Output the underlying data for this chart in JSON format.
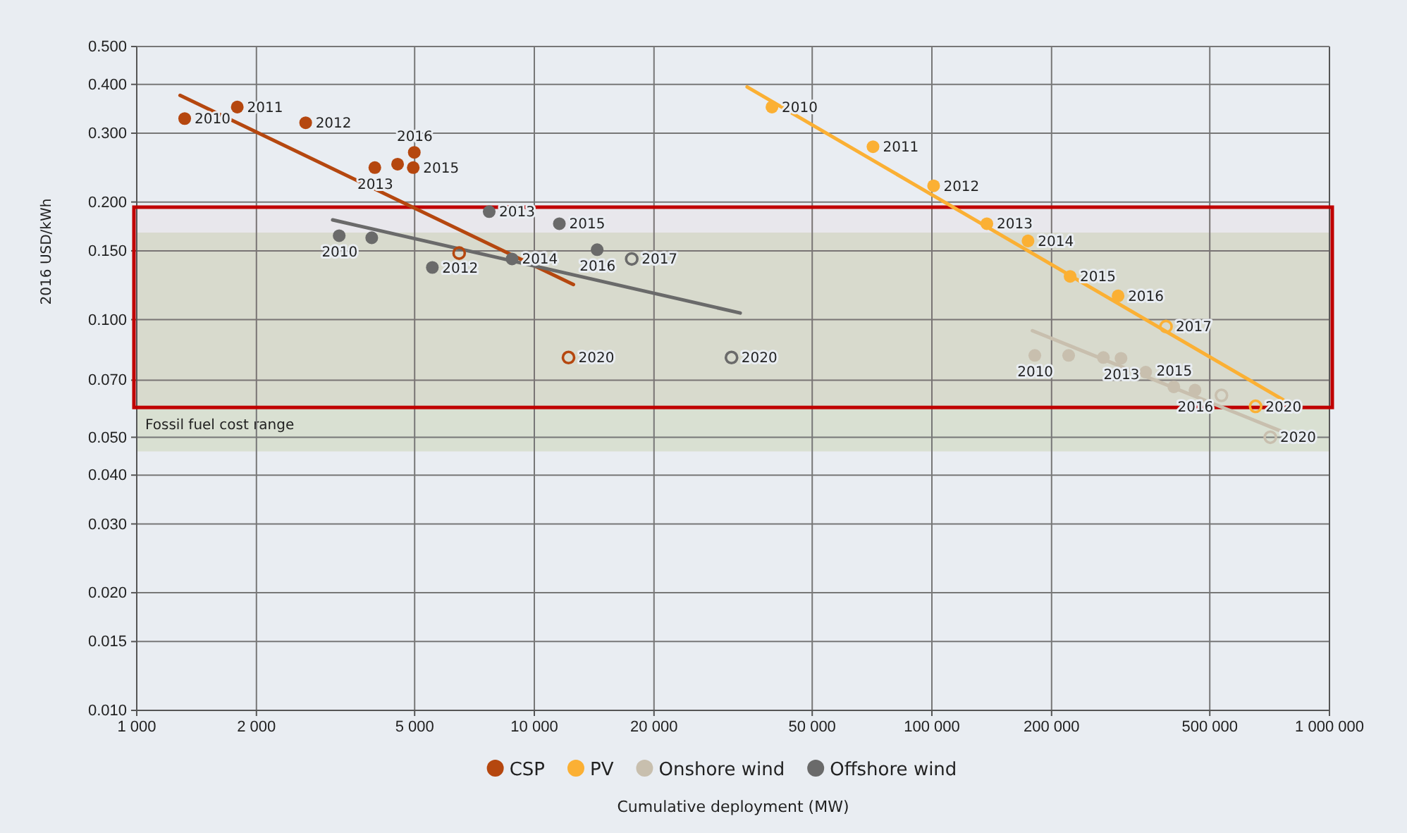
{
  "chart_data": {
    "type": "scatter",
    "xlabel": "Cumulative deployment (MW)",
    "ylabel": "2016 USD/kWh",
    "log": "xy",
    "grid": true,
    "legend": "bottom",
    "marker": "circle",
    "xlim": [
      1000,
      1000000
    ],
    "ylim": [
      0.01,
      0.5
    ],
    "xticks": [
      {
        "value": 1000,
        "label": "1 000"
      },
      {
        "value": 2000,
        "label": "2 000"
      },
      {
        "value": 5000,
        "label": "5 000"
      },
      {
        "value": 10000,
        "label": "10 000"
      },
      {
        "value": 20000,
        "label": "20 000"
      },
      {
        "value": 50000,
        "label": "50 000"
      },
      {
        "value": 100000,
        "label": "100 000"
      },
      {
        "value": 200000,
        "label": "200 000"
      },
      {
        "value": 500000,
        "label": "500 000"
      },
      {
        "value": 1000000,
        "label": "1 000 000"
      }
    ],
    "yticks": [
      {
        "value": 0.01,
        "label": "0.010"
      },
      {
        "value": 0.015,
        "label": "0.015"
      },
      {
        "value": 0.02,
        "label": "0.020"
      },
      {
        "value": 0.03,
        "label": "0.030"
      },
      {
        "value": 0.04,
        "label": "0.040"
      },
      {
        "value": 0.05,
        "label": "0.050"
      },
      {
        "value": 0.07,
        "label": "0.070"
      },
      {
        "value": 0.1,
        "label": "0.100"
      },
      {
        "value": 0.15,
        "label": "0.150"
      },
      {
        "value": 0.2,
        "label": "0.200"
      },
      {
        "value": 0.3,
        "label": "0.300"
      },
      {
        "value": 0.4,
        "label": "0.400"
      },
      {
        "value": 0.5,
        "label": "0.500"
      }
    ],
    "bands": [
      {
        "axis": "y",
        "from": 0.046,
        "to": 0.167,
        "label": "Fossil fuel cost range",
        "color": "#d9e0d2"
      },
      {
        "axis": "y",
        "from": 0.0596,
        "to": 0.194,
        "color": "#c00000"
      }
    ],
    "annotations": [
      {
        "text": "2010",
        "x": 1320,
        "y": 0.327
      },
      {
        "text": "2011",
        "x": 1790,
        "y": 0.35
      },
      {
        "text": "2012",
        "x": 2660,
        "y": 0.319
      },
      {
        "text": "2013",
        "x": 3970,
        "y": 0.245
      },
      {
        "text": "2015",
        "x": 4960,
        "y": 0.245
      },
      {
        "text": "2016",
        "x": 4990,
        "y": 0.268
      },
      {
        "text": "2020",
        "x": 12190,
        "y": 0.08
      },
      {
        "text": "2010",
        "x": 39600,
        "y": 0.35
      },
      {
        "text": "2011",
        "x": 71100,
        "y": 0.277
      },
      {
        "text": "2012",
        "x": 101000,
        "y": 0.22
      },
      {
        "text": "2013",
        "x": 137500,
        "y": 0.176
      },
      {
        "text": "2014",
        "x": 174500,
        "y": 0.159
      },
      {
        "text": "2015",
        "x": 222700,
        "y": 0.129
      },
      {
        "text": "2016",
        "x": 294000,
        "y": 0.115
      },
      {
        "text": "2017",
        "x": 388000,
        "y": 0.096
      },
      {
        "text": "2020",
        "x": 652000,
        "y": 0.06
      },
      {
        "text": "2010",
        "x": 181500,
        "y": 0.081
      },
      {
        "text": "2013",
        "x": 299000,
        "y": 0.0796
      },
      {
        "text": "2015",
        "x": 406000,
        "y": 0.0673
      },
      {
        "text": "2016",
        "x": 459000,
        "y": 0.066
      },
      {
        "text": "2020",
        "x": 710000,
        "y": 0.05
      },
      {
        "text": "2010",
        "x": 3230,
        "y": 0.164
      },
      {
        "text": "2012",
        "x": 5540,
        "y": 0.136
      },
      {
        "text": "2013",
        "x": 7700,
        "y": 0.189
      },
      {
        "text": "2014",
        "x": 8790,
        "y": 0.143
      },
      {
        "text": "2015",
        "x": 11560,
        "y": 0.176
      },
      {
        "text": "2016",
        "x": 14390,
        "y": 0.151
      },
      {
        "text": "2017",
        "x": 17580,
        "y": 0.143
      },
      {
        "text": "2020",
        "x": 31330,
        "y": 0.08
      }
    ],
    "series": [
      {
        "type": "line",
        "marker": "none",
        "color": "#b5470f",
        "x": [
          1285,
          12540
        ],
        "values": [
          0.375,
          0.123
        ]
      },
      {
        "type": "line",
        "marker": "none",
        "color": "#6a6a6a",
        "x": [
          3110,
          32950
        ],
        "values": [
          0.18,
          0.104
        ]
      },
      {
        "type": "line",
        "marker": "none",
        "color": "#fbb034",
        "x": [
          34300,
          764000
        ],
        "values": [
          0.394,
          0.0624
        ]
      },
      {
        "type": "line",
        "marker": "none",
        "color": "#c8bfae",
        "x": [
          179000,
          764000
        ],
        "values": [
          0.0937,
          0.0516
        ]
      },
      {
        "name": "CSP",
        "color": "#b5470f",
        "x": [
          1320,
          1790,
          2660,
          3970,
          4530,
          4960,
          4990
        ],
        "values": [
          0.327,
          0.35,
          0.319,
          0.245,
          0.25,
          0.245,
          0.268
        ]
      },
      {
        "name": "PV",
        "color": "#fbb034",
        "x": [
          39600,
          71100,
          101000,
          137500,
          174500,
          222700,
          294000
        ],
        "values": [
          0.35,
          0.277,
          0.22,
          0.176,
          0.159,
          0.129,
          0.115
        ]
      },
      {
        "name": "Onshore wind",
        "color": "#c8bfae",
        "x": [
          181500,
          220800,
          270000,
          299000,
          345000,
          406000,
          459000
        ],
        "values": [
          0.081,
          0.081,
          0.08,
          0.0796,
          0.0734,
          0.0673,
          0.066
        ]
      },
      {
        "name": "Offshore wind",
        "color": "#6a6a6a",
        "x": [
          3230,
          3900,
          5540,
          7700,
          8790,
          11560,
          14390
        ],
        "values": [
          0.164,
          0.162,
          0.136,
          0.189,
          0.143,
          0.176,
          0.151
        ]
      },
      {
        "color": "#b5470f",
        "x": [
          6470,
          12190
        ],
        "values": [
          0.148,
          0.08
        ]
      },
      {
        "color": "#fbb034",
        "x": [
          388000,
          652000
        ],
        "values": [
          0.096,
          0.06
        ]
      },
      {
        "color": "#c8bfae",
        "x": [
          535000,
          710000
        ],
        "values": [
          0.064,
          0.05
        ]
      },
      {
        "color": "#6a6a6a",
        "x": [
          17580,
          31330
        ],
        "values": [
          0.143,
          0.08
        ]
      }
    ]
  }
}
